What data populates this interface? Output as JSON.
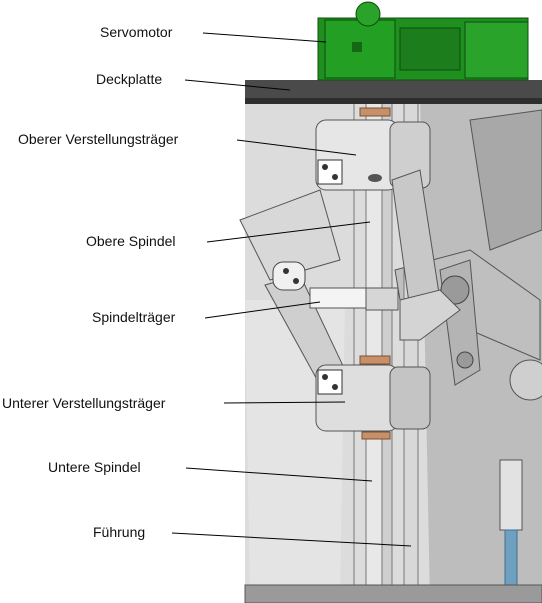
{
  "labels": {
    "servomotor": "Servomotor",
    "deckplatte": "Deckplatte",
    "oberer_verstellungstraeger": "Oberer Verstellungsträger",
    "obere_spindel": "Obere Spindel",
    "spindeltraeger": "Spindelträger",
    "unterer_verstellungstraeger": "Unterer Verstellungsträger",
    "untere_spindel": "Untere Spindel",
    "fuehrung": "Führung"
  },
  "colors": {
    "motor": "#1f8f1f",
    "motor_dark": "#146814",
    "plate": "#4a4a4a",
    "metal_light": "#e6e6e6",
    "metal_mid": "#c4c4c4",
    "metal_dark": "#8f8f8f",
    "panel": "#d2d2d2",
    "bronze": "#c8906a",
    "rod_blue": "#6fa0bf"
  }
}
